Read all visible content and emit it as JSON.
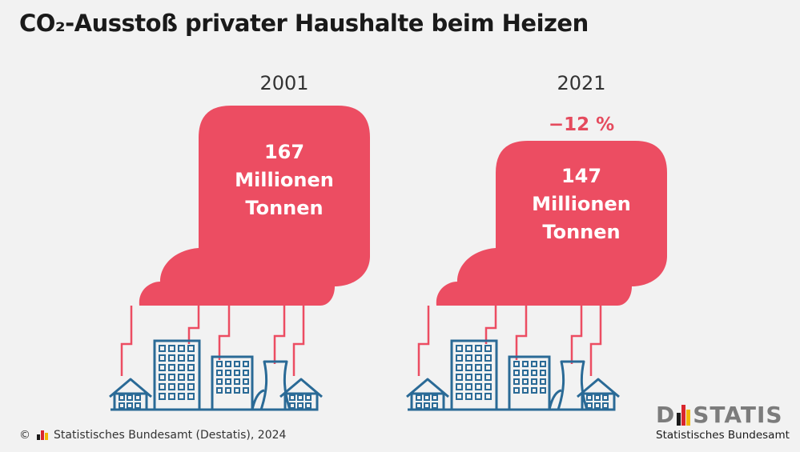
{
  "title": "CO₂-Ausstoß privater Haushalte beim Heizen",
  "chart_data": {
    "type": "pictogram",
    "items": [
      {
        "year": "2001",
        "value": 167,
        "unit_line1": "Millionen",
        "unit_line2": "Tonnen",
        "change": ""
      },
      {
        "year": "2021",
        "value": 147,
        "unit_line1": "Millionen",
        "unit_line2": "Tonnen",
        "change": "−12 %"
      }
    ]
  },
  "colors": {
    "cloud": "#ec4d62",
    "building": "#2a6a96",
    "accent_text": "#e54a5d",
    "smoke_line": "#ec4d62"
  },
  "footer": {
    "copyright": "©",
    "source": "Statistisches Bundesamt (Destatis), 2024"
  },
  "logo": {
    "word_left": "D",
    "word_right": "STATIS",
    "subtitle": "Statistisches Bundesamt"
  }
}
